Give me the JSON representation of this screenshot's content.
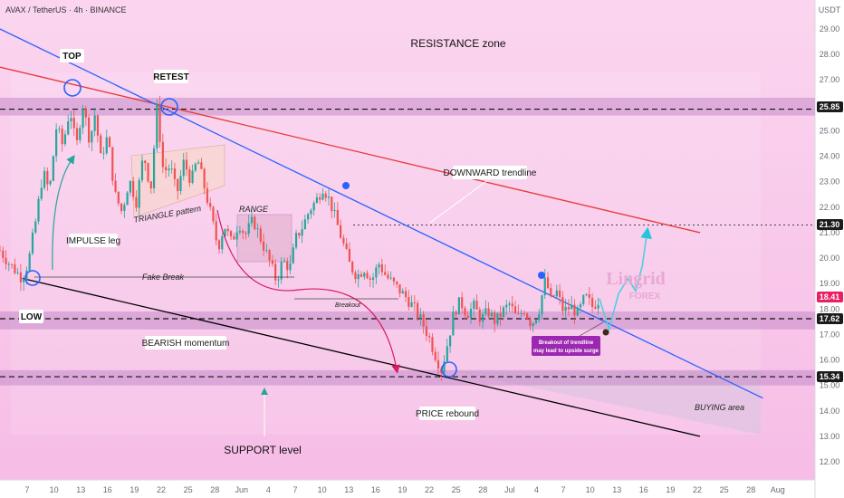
{
  "header": {
    "symbol": "AVAX / TetherUS · 4h · BINANCE",
    "currency": "USDT"
  },
  "colors": {
    "up": "#26a69a",
    "down": "#ef5350",
    "resistance_line": "#e53935",
    "channel_line": "#2962ff",
    "support_line": "#000000",
    "zone_fill": "#c48bc9",
    "background": "#f8c3ea"
  },
  "chart_data": {
    "type": "candlestick",
    "title": "AVAX / TetherUS · 4h · BINANCE",
    "ylabel": "USDT",
    "ylim": [
      11.5,
      29.5
    ],
    "y_ticks": [
      12.0,
      13.0,
      14.0,
      15.0,
      16.0,
      17.0,
      18.0,
      19.0,
      20.0,
      21.0,
      22.0,
      23.0,
      24.0,
      25.0,
      26.0,
      27.0,
      28.0,
      29.0
    ],
    "x_ticks": [
      "7",
      "10",
      "13",
      "16",
      "19",
      "22",
      "25",
      "28",
      "Jun",
      "4",
      "7",
      "10",
      "13",
      "16",
      "19",
      "22",
      "25",
      "28",
      "Jul",
      "4",
      "7",
      "10",
      "13",
      "16",
      "19",
      "22",
      "25",
      "28",
      "Aug"
    ],
    "price_path": [
      {
        "t": 0,
        "p": 20.3
      },
      {
        "t": 1.0,
        "p": 19.8
      },
      {
        "t": 2.5,
        "p": 19.2
      },
      {
        "t": 3.2,
        "p": 19.9
      },
      {
        "t": 4.0,
        "p": 21.5
      },
      {
        "t": 4.8,
        "p": 23.4
      },
      {
        "t": 5.5,
        "p": 22.6
      },
      {
        "t": 6.3,
        "p": 25.2
      },
      {
        "t": 7.0,
        "p": 24.4
      },
      {
        "t": 7.8,
        "p": 25.9
      },
      {
        "t": 8.5,
        "p": 24.3
      },
      {
        "t": 9.2,
        "p": 26.1
      },
      {
        "t": 10.0,
        "p": 24.6
      },
      {
        "t": 10.6,
        "p": 25.7
      },
      {
        "t": 11.2,
        "p": 23.9
      },
      {
        "t": 12.0,
        "p": 24.8
      },
      {
        "t": 12.8,
        "p": 22.5
      },
      {
        "t": 13.6,
        "p": 21.8
      },
      {
        "t": 14.4,
        "p": 23.1
      },
      {
        "t": 15.2,
        "p": 22.2
      },
      {
        "t": 16.0,
        "p": 24.1
      },
      {
        "t": 16.8,
        "p": 22.7
      },
      {
        "t": 17.5,
        "p": 25.9
      },
      {
        "t": 18.2,
        "p": 23.4
      },
      {
        "t": 19.0,
        "p": 23.6
      },
      {
        "t": 19.7,
        "p": 22.5
      },
      {
        "t": 20.5,
        "p": 23.8
      },
      {
        "t": 21.3,
        "p": 23.0
      },
      {
        "t": 22.0,
        "p": 23.9
      },
      {
        "t": 22.7,
        "p": 22.9
      },
      {
        "t": 23.5,
        "p": 21.7
      },
      {
        "t": 24.3,
        "p": 20.4
      },
      {
        "t": 25.0,
        "p": 21.3
      },
      {
        "t": 25.8,
        "p": 20.6
      },
      {
        "t": 26.6,
        "p": 21.4
      },
      {
        "t": 27.3,
        "p": 20.9
      },
      {
        "t": 28.2,
        "p": 21.5
      },
      {
        "t": 29.0,
        "p": 20.8
      },
      {
        "t": 30.0,
        "p": 19.9
      },
      {
        "t": 30.8,
        "p": 19.1
      },
      {
        "t": 31.5,
        "p": 19.9
      },
      {
        "t": 32.3,
        "p": 19.6
      },
      {
        "t": 33.0,
        "p": 20.8
      },
      {
        "t": 33.8,
        "p": 21.3
      },
      {
        "t": 34.5,
        "p": 21.9
      },
      {
        "t": 35.3,
        "p": 22.3
      },
      {
        "t": 36.0,
        "p": 22.8
      },
      {
        "t": 36.8,
        "p": 22.2
      },
      {
        "t": 37.5,
        "p": 21.4
      },
      {
        "t": 38.2,
        "p": 20.6
      },
      {
        "t": 39.0,
        "p": 19.7
      },
      {
        "t": 39.8,
        "p": 19.3
      },
      {
        "t": 40.6,
        "p": 19.6
      },
      {
        "t": 41.4,
        "p": 19.1
      },
      {
        "t": 42.2,
        "p": 19.8
      },
      {
        "t": 43.0,
        "p": 19.3
      },
      {
        "t": 43.8,
        "p": 19.0
      },
      {
        "t": 44.6,
        "p": 18.7
      },
      {
        "t": 45.4,
        "p": 18.4
      },
      {
        "t": 46.2,
        "p": 18.0
      },
      {
        "t": 47.0,
        "p": 17.5
      },
      {
        "t": 47.8,
        "p": 16.9
      },
      {
        "t": 48.5,
        "p": 16.2
      },
      {
        "t": 49.2,
        "p": 15.6
      },
      {
        "t": 49.9,
        "p": 16.7
      },
      {
        "t": 50.6,
        "p": 17.9
      },
      {
        "t": 51.3,
        "p": 18.3
      },
      {
        "t": 52.0,
        "p": 17.8
      },
      {
        "t": 52.8,
        "p": 18.1
      },
      {
        "t": 53.6,
        "p": 17.6
      },
      {
        "t": 54.4,
        "p": 17.9
      },
      {
        "t": 55.2,
        "p": 17.5
      },
      {
        "t": 56.0,
        "p": 17.9
      },
      {
        "t": 56.8,
        "p": 18.2
      },
      {
        "t": 57.6,
        "p": 17.6
      },
      {
        "t": 58.4,
        "p": 18.0
      },
      {
        "t": 59.2,
        "p": 17.4
      },
      {
        "t": 60.0,
        "p": 17.9
      },
      {
        "t": 60.8,
        "p": 19.2
      },
      {
        "t": 61.4,
        "p": 18.3
      },
      {
        "t": 62.0,
        "p": 18.7
      },
      {
        "t": 62.8,
        "p": 17.9
      },
      {
        "t": 63.6,
        "p": 18.1
      },
      {
        "t": 64.4,
        "p": 17.8
      },
      {
        "t": 65.2,
        "p": 18.5
      },
      {
        "t": 66.0,
        "p": 18.1
      },
      {
        "t": 66.8,
        "p": 18.4
      }
    ],
    "projection": [
      {
        "t": 66.8,
        "p": 18.4
      },
      {
        "t": 67.8,
        "p": 17.2
      },
      {
        "t": 68.8,
        "p": 18.6
      },
      {
        "t": 69.8,
        "p": 19.2
      },
      {
        "t": 70.6,
        "p": 18.7
      },
      {
        "t": 71.3,
        "p": 19.7
      },
      {
        "t": 71.8,
        "p": 21.0
      }
    ],
    "horizontal_levels": [
      {
        "value": 25.85,
        "label": "25.85"
      },
      {
        "value": 21.3,
        "label": "21.30"
      },
      {
        "value": 18.41,
        "label": "18.41"
      },
      {
        "value": 17.62,
        "label": "17.62"
      },
      {
        "value": 15.34,
        "label": "15.34"
      }
    ],
    "zones": [
      {
        "from": 25.6,
        "to": 26.3,
        "name": "RESISTANCE zone"
      },
      {
        "from": 17.2,
        "to": 17.9,
        "name": ""
      },
      {
        "from": 15.0,
        "to": 15.6,
        "name": "SUPPORT level"
      }
    ],
    "trendlines": [
      {
        "name": "DOWNWARD trendline",
        "from": {
          "t": 0,
          "p": 27.5
        },
        "to": {
          "t": 78,
          "p": 21.0
        }
      },
      {
        "name": "channel",
        "from": {
          "t": 0,
          "p": 29.0
        },
        "to": {
          "t": 85,
          "p": 14.5
        }
      },
      {
        "name": "support",
        "from": {
          "t": 2.5,
          "p": 19.2
        },
        "to": {
          "t": 78,
          "p": 13.0
        }
      }
    ],
    "annotations": [
      {
        "text": "TOP",
        "t": 7.8,
        "p": 25.9
      },
      {
        "text": "RETEST",
        "t": 17.5,
        "p": 25.9
      },
      {
        "text": "IMPULSE leg",
        "t": 6.0,
        "p": 21.5
      },
      {
        "text": "TRIANGLE pattern",
        "t": 17.0,
        "p": 21.9
      },
      {
        "text": "RANGE",
        "t": 24.5,
        "p": 22.1
      },
      {
        "text": "Fake Break",
        "t": 15.0,
        "p": 19.6
      },
      {
        "text": "LOW",
        "t": 2.5,
        "p": 19.2
      },
      {
        "text": "Breakout",
        "t": 37.0,
        "p": 18.6
      },
      {
        "text": "BEARISH momentum",
        "t": 19.0,
        "p": 17.3
      },
      {
        "text": "DOWNWARD trendline",
        "t": 49.5,
        "p": 23.9
      },
      {
        "text": "PRICE rebound",
        "t": 49.2,
        "p": 15.6
      },
      {
        "text": "Breakout of trendline may lead to upside surge",
        "t": 60.5,
        "p": 17.0
      },
      {
        "text": "BUYING area",
        "t": 76.0,
        "p": 14.4
      },
      {
        "text": "SUPPORT level",
        "t": 28.0,
        "p": 13.3
      },
      {
        "text": "RESISTANCE zone",
        "t": 48.0,
        "p": 28.1
      }
    ]
  },
  "price_tags": {
    "t1": "25.85",
    "t2": "21.30",
    "t3": "18.41",
    "t4": "17.62",
    "t5": "15.34"
  },
  "labels": {
    "top": "TOP",
    "retest": "RETEST",
    "impulse": "IMPULSE leg",
    "triangle": "TRIANGLE pattern",
    "range": "RANGE",
    "fake_break": "Fake Break",
    "low": "LOW",
    "breakout": "Breakout",
    "bearish": "BEARISH momentum",
    "downward": "DOWNWARD trendline",
    "rebound": "PRICE rebound",
    "surge_line1": "Breakout of trendline",
    "surge_line2": "may lead to upside surge",
    "buying": "BUYING area",
    "support": "SUPPORT level",
    "resistance": "RESISTANCE zone"
  },
  "watermark": {
    "line1": "Lingrid",
    "line2": "FOREX"
  }
}
